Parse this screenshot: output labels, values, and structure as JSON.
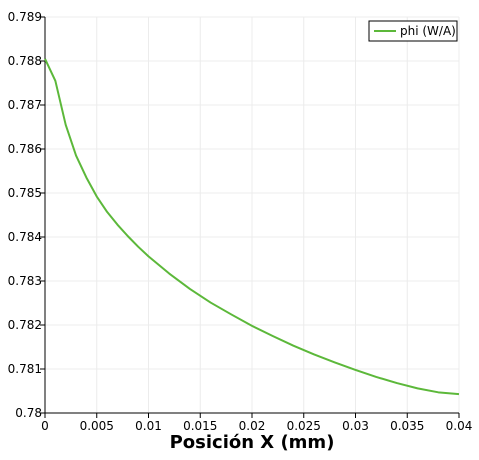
{
  "chart_data": {
    "type": "line",
    "title": "",
    "xlabel": "Posición X (mm)",
    "ylabel": "",
    "xlim": [
      0,
      0.04
    ],
    "ylim": [
      0.78,
      0.789
    ],
    "grid": true,
    "legend_position": "top-right",
    "x_ticks": [
      "0",
      "0.005",
      "0.01",
      "0.015",
      "0.02",
      "0.025",
      "0.03",
      "0.035",
      "0.04"
    ],
    "y_ticks": [
      "0.78",
      "0.781",
      "0.782",
      "0.783",
      "0.784",
      "0.785",
      "0.786",
      "0.787",
      "0.788",
      "0.789"
    ],
    "series": [
      {
        "name": "phi (W/A)",
        "color": "#5cb83a",
        "x": [
          0,
          0.001,
          0.002,
          0.003,
          0.004,
          0.005,
          0.006,
          0.007,
          0.008,
          0.009,
          0.01,
          0.012,
          0.014,
          0.016,
          0.018,
          0.02,
          0.022,
          0.024,
          0.026,
          0.028,
          0.03,
          0.032,
          0.034,
          0.036,
          0.038,
          0.04
        ],
        "y": [
          0.78805,
          0.78755,
          0.78655,
          0.78585,
          0.78535,
          0.78492,
          0.78457,
          0.78428,
          0.78402,
          0.78378,
          0.78356,
          0.78317,
          0.78282,
          0.78251,
          0.78224,
          0.78198,
          0.78175,
          0.78153,
          0.78133,
          0.78115,
          0.78098,
          0.78082,
          0.78068,
          0.78056,
          0.78047,
          0.78043
        ]
      }
    ]
  }
}
